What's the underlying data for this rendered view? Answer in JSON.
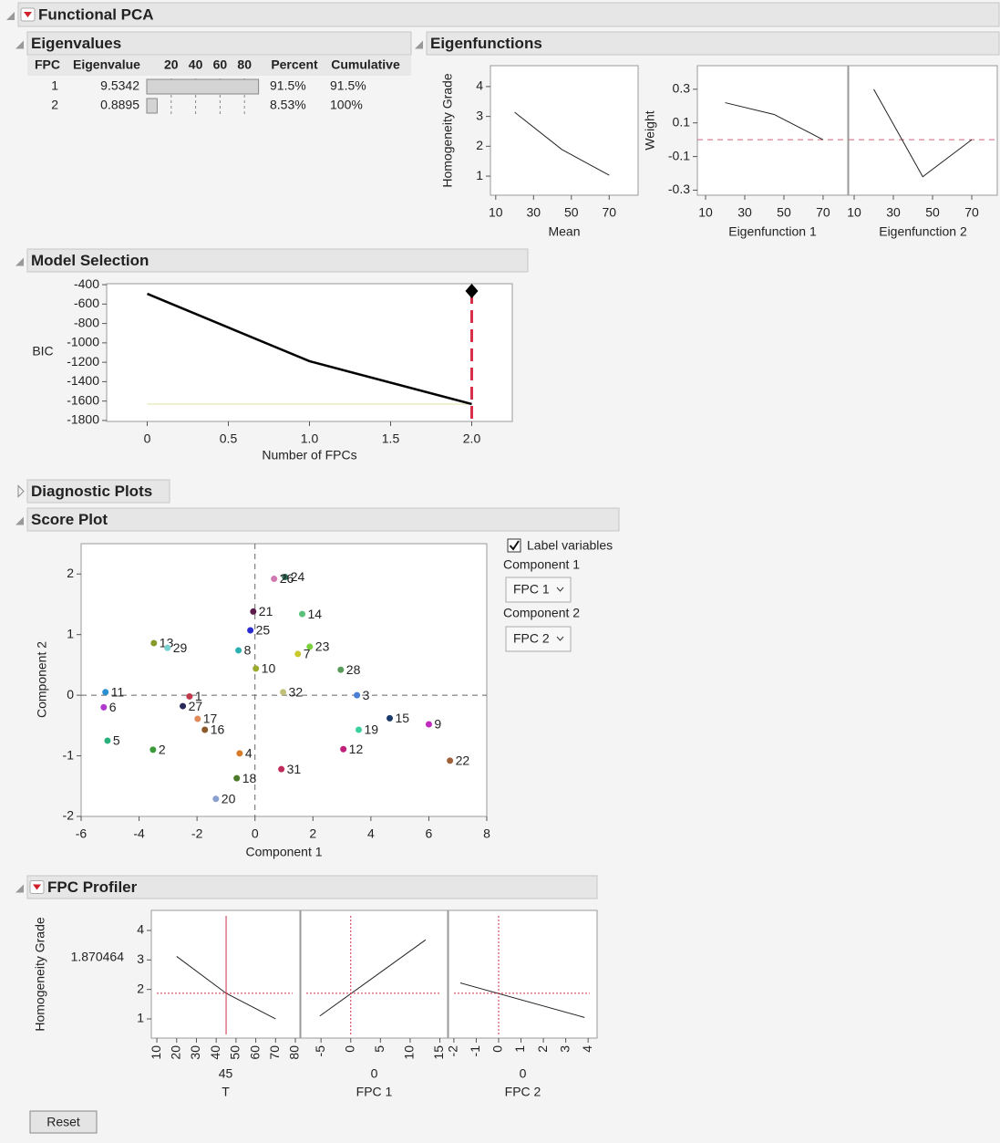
{
  "header": {
    "title": "Functional PCA"
  },
  "eigenvalues": {
    "title": "Eigenvalues",
    "columns": [
      "FPC",
      "Eigenvalue",
      "Percent",
      "Cumulative"
    ],
    "bar_ticks": [
      20,
      40,
      60,
      80
    ],
    "fpc": [
      1,
      2
    ],
    "eigenvalue": [
      9.5342,
      0.8895
    ],
    "percent": [
      91.5,
      8.53
    ],
    "percent_labels": [
      "91.5%",
      "8.53%"
    ],
    "cumulative": [
      91.5,
      100
    ],
    "cumulative_labels": [
      "91.5%",
      "100%"
    ],
    "bar_color": "#d4d4d4"
  },
  "eigenfunctions": {
    "title": "Eigenfunctions"
  },
  "model_selection": {
    "title": "Model Selection"
  },
  "diagnostic_plots": {
    "title": "Diagnostic Plots"
  },
  "score_plot": {
    "title": "Score Plot",
    "label_variables": "Label variables",
    "component_1": "Component 1",
    "component_1_value": "FPC 1",
    "component_2": "Component 2",
    "component_2_value": "FPC 2"
  },
  "fpc_profiler": {
    "title": "FPC Profiler",
    "reset": "Reset"
  },
  "chart_data": [
    {
      "type": "line",
      "xlabel": "Mean",
      "ylabel": "Homogeneity Grade",
      "x": [
        20,
        45,
        70
      ],
      "series": [
        {
          "color": "#222222",
          "values": [
            3.14,
            1.89,
            1.03
          ]
        }
      ],
      "xlim": [
        7.2,
        85.3
      ],
      "ylim": [
        0.36,
        4.7
      ],
      "xticks": [
        10,
        30,
        50,
        70
      ],
      "yticks": [
        1,
        2,
        3,
        4
      ]
    },
    {
      "type": "line",
      "xlabel": "Eigenfunction 1",
      "ylabel": "Weight",
      "x": [
        20,
        45,
        70
      ],
      "series": [
        {
          "color": "#222222",
          "values": [
            0.22,
            0.15,
            0.0
          ]
        }
      ],
      "xlim": [
        5.8,
        82.6
      ],
      "ylim": [
        -0.33,
        0.44
      ],
      "xticks": [
        10,
        30,
        50,
        70
      ],
      "yticks": [
        -0.3,
        -0.1,
        0.1,
        0.3
      ],
      "ref_y": 0,
      "ref_color": "#d0607a"
    },
    {
      "type": "line",
      "xlabel": "Eigenfunction 2",
      "x": [
        20,
        45,
        70
      ],
      "series": [
        {
          "color": "#222222",
          "values": [
            0.3,
            -0.22,
            0.0
          ]
        }
      ],
      "xlim": [
        7.2,
        83
      ],
      "ylim": [
        -0.33,
        0.44
      ],
      "xticks": [
        10,
        30,
        50,
        70
      ],
      "ref_y": 0,
      "ref_color": "#d0607a"
    },
    {
      "type": "line",
      "xlabel": "Number of FPCs",
      "ylabel": "BIC",
      "x": [
        0,
        1,
        2
      ],
      "series": [
        {
          "color": "#000000",
          "values": [
            -494,
            -1189,
            -1631
          ]
        }
      ],
      "xlim": [
        -0.25,
        2.25
      ],
      "ylim": [
        -1810,
        -390
      ],
      "xticks": [
        0,
        0.5,
        {
          "value": 1,
          "label": "1.0"
        },
        1.5,
        {
          "value": 2,
          "label": "2.0"
        }
      ],
      "yticks": [
        -1800,
        -1600,
        -1400,
        -1200,
        -1000,
        -800,
        -600,
        -400
      ],
      "ref_y": -1631,
      "ref_color": "#ecebc4",
      "selected_x": 2,
      "selected_color": "#d8304a"
    },
    {
      "type": "scatter",
      "xlabel": "Component 1",
      "ylabel": "Component 2",
      "xlim": [
        -6,
        8
      ],
      "ylim": [
        -2,
        2.5
      ],
      "xticks": [
        -6,
        -4,
        -2,
        0,
        2,
        4,
        6,
        8
      ],
      "yticks": [
        -2,
        -1,
        0,
        1,
        2
      ],
      "ref_x": 0,
      "ref_y": 0,
      "ref_color": "#666666",
      "points": [
        {
          "label": "1",
          "x": -2.26,
          "y": -0.02,
          "color": "#c0394b"
        },
        {
          "label": "2",
          "x": -3.52,
          "y": -0.9,
          "color": "#3a9a3a"
        },
        {
          "label": "3",
          "x": 3.52,
          "y": 0.0,
          "color": "#4a7fd6"
        },
        {
          "label": "4",
          "x": -0.53,
          "y": -0.96,
          "color": "#d97a2a"
        },
        {
          "label": "5",
          "x": -5.09,
          "y": -0.75,
          "color": "#2ab07a"
        },
        {
          "label": "6",
          "x": -5.22,
          "y": -0.2,
          "color": "#b03ad0"
        },
        {
          "label": "7",
          "x": 1.48,
          "y": 0.68,
          "color": "#c8c82a"
        },
        {
          "label": "8",
          "x": -0.57,
          "y": 0.74,
          "color": "#2ab0b0"
        },
        {
          "label": "9",
          "x": 6.0,
          "y": -0.48,
          "color": "#c02ac0"
        },
        {
          "label": "10",
          "x": 0.03,
          "y": 0.44,
          "color": "#9aaa2a"
        },
        {
          "label": "11",
          "x": -5.16,
          "y": 0.05,
          "color": "#2a90d0"
        },
        {
          "label": "12",
          "x": 3.05,
          "y": -0.89,
          "color": "#c0207a"
        },
        {
          "label": "13",
          "x": -3.49,
          "y": 0.86,
          "color": "#8a9a2a"
        },
        {
          "label": "14",
          "x": 1.63,
          "y": 1.34,
          "color": "#5ac07a"
        },
        {
          "label": "15",
          "x": 4.65,
          "y": -0.38,
          "color": "#1a3a6a"
        },
        {
          "label": "16",
          "x": -1.73,
          "y": -0.57,
          "color": "#8a5a2a"
        },
        {
          "label": "17",
          "x": -1.98,
          "y": -0.39,
          "color": "#e08a5a"
        },
        {
          "label": "18",
          "x": -0.63,
          "y": -1.37,
          "color": "#4a7a2a"
        },
        {
          "label": "19",
          "x": 3.58,
          "y": -0.57,
          "color": "#3ad0a0"
        },
        {
          "label": "20",
          "x": -1.35,
          "y": -1.71,
          "color": "#8aa0d0"
        },
        {
          "label": "21",
          "x": -0.06,
          "y": 1.38,
          "color": "#5a1a4a"
        },
        {
          "label": "22",
          "x": 6.73,
          "y": -1.08,
          "color": "#a0603a"
        },
        {
          "label": "23",
          "x": 1.89,
          "y": 0.8,
          "color": "#7ad03a"
        },
        {
          "label": "24",
          "x": 1.04,
          "y": 1.95,
          "color": "#2a6a5a"
        },
        {
          "label": "25",
          "x": -0.16,
          "y": 1.07,
          "color": "#2a2ad0"
        },
        {
          "label": "26",
          "x": 0.66,
          "y": 1.92,
          "color": "#d07ab0"
        },
        {
          "label": "27",
          "x": -2.49,
          "y": -0.18,
          "color": "#2a2a5a"
        },
        {
          "label": "28",
          "x": 2.96,
          "y": 0.42,
          "color": "#5a9a5a"
        },
        {
          "label": "29",
          "x": -3.02,
          "y": 0.78,
          "color": "#7ad0d0"
        },
        {
          "label": "31",
          "x": 0.91,
          "y": -1.22,
          "color": "#c02a5a"
        },
        {
          "label": "32",
          "x": 0.97,
          "y": 0.05,
          "color": "#c0c07a"
        }
      ]
    },
    {
      "type": "line",
      "xlabel": "T",
      "ylabel": "Homogeneity Grade",
      "x": [
        20,
        45,
        70
      ],
      "series": [
        {
          "color": "#222222",
          "values": [
            3.12,
            1.87,
            1.0
          ]
        }
      ],
      "xlim": [
        7.2,
        82.3
      ],
      "ylim": [
        0.35,
        4.68
      ],
      "xticks": [
        10,
        20,
        30,
        40,
        50,
        60,
        70,
        80
      ],
      "yticks": [
        1,
        2,
        3,
        4
      ],
      "current_x": 45,
      "current_y": 1.870464,
      "current_color": "#d0304a",
      "current_line": "solid"
    },
    {
      "type": "line",
      "xlabel": "FPC 1",
      "x": [
        -5.2,
        12.6
      ],
      "series": [
        {
          "color": "#222222",
          "values": [
            1.1,
            3.68
          ]
        }
      ],
      "xlim": [
        -8.4,
        16.3
      ],
      "ylim": [
        0.35,
        4.68
      ],
      "xticks": [
        -5,
        0,
        5,
        10,
        15
      ],
      "current_x": 0,
      "current_color": "#d0304a",
      "current_line": "dotted"
    },
    {
      "type": "line",
      "xlabel": "FPC 2",
      "x": [
        -1.71,
        3.84
      ],
      "series": [
        {
          "color": "#222222",
          "values": [
            2.22,
            1.05
          ]
        }
      ],
      "xlim": [
        -2.24,
        4.4
      ],
      "ylim": [
        0.35,
        4.68
      ],
      "xticks": [
        -2,
        -1,
        0,
        1,
        2,
        3,
        4
      ],
      "current_x": 0,
      "current_color": "#d0304a",
      "current_line": "dotted"
    }
  ]
}
